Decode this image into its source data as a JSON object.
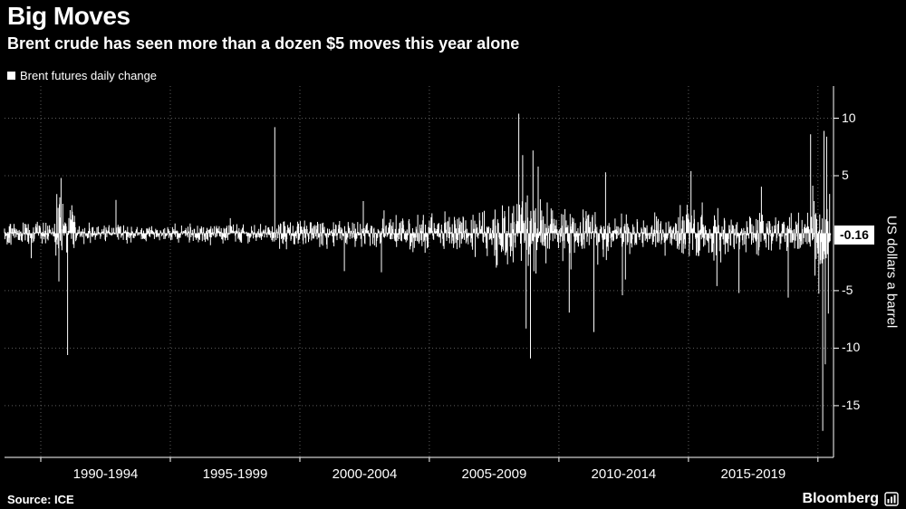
{
  "header": {
    "title": "Big Moves",
    "subtitle": "Brent crude has seen more than a dozen $5 moves this year alone"
  },
  "legend": {
    "label": "Brent futures daily change"
  },
  "footer": {
    "source": "Source: ICE",
    "brand": "Bloomberg"
  },
  "colors": {
    "background": "#000000",
    "foreground": "#ffffff",
    "bars": "#ffffff",
    "grid": "#aaaaaa",
    "axis": "#ffffff",
    "badge_bg": "#ffffff",
    "badge_text": "#000000"
  },
  "chart_data": {
    "type": "bar",
    "title": "Big Moves",
    "subtitle": "Brent crude has seen more than a dozen $5 moves this year alone",
    "series_name": "Brent futures daily change",
    "ylabel": "US dollars a barrel",
    "yticks": [
      10,
      5,
      -5,
      -10,
      -15
    ],
    "ylim": [
      -19.5,
      12.8
    ],
    "x_range": [
      1988.6,
      2020.6
    ],
    "data_end": 2020.5,
    "x_gridlines": [
      1990,
      1995,
      2000,
      2005,
      2010,
      2015,
      2020
    ],
    "x_labels": [
      {
        "label": "1990-1994",
        "center": 1992.5
      },
      {
        "label": "1995-1999",
        "center": 1997.5
      },
      {
        "label": "2000-2004",
        "center": 2002.5
      },
      {
        "label": "2005-2009",
        "center": 2007.5
      },
      {
        "label": "2010-2014",
        "center": 2012.5
      },
      {
        "label": "2015-2019",
        "center": 2017.5
      }
    ],
    "last_value": -0.16,
    "last_value_label": "-0.16",
    "points_per_year": 60,
    "seed": 42,
    "volatility_segments": [
      {
        "from": 1988.6,
        "to": 1990.55,
        "sigma": 0.55
      },
      {
        "from": 1990.55,
        "to": 1991.35,
        "sigma": 1.4
      },
      {
        "from": 1991.35,
        "to": 1999.0,
        "sigma": 0.42
      },
      {
        "from": 1999.0,
        "to": 2003.0,
        "sigma": 0.65
      },
      {
        "from": 2003.0,
        "to": 2007.5,
        "sigma": 0.85
      },
      {
        "from": 2007.5,
        "to": 2009.6,
        "sigma": 1.65
      },
      {
        "from": 2009.6,
        "to": 2011.9,
        "sigma": 1.1
      },
      {
        "from": 2011.9,
        "to": 2014.5,
        "sigma": 0.8
      },
      {
        "from": 2014.5,
        "to": 2016.6,
        "sigma": 1.1
      },
      {
        "from": 2016.6,
        "to": 2019.8,
        "sigma": 0.85
      },
      {
        "from": 2019.8,
        "to": 2020.55,
        "sigma": 2.4
      }
    ],
    "spikes": [
      {
        "x": 1990.62,
        "v": 3.4
      },
      {
        "x": 1990.7,
        "v": -4.2
      },
      {
        "x": 1990.78,
        "v": 4.8
      },
      {
        "x": 1991.04,
        "v": -10.6
      },
      {
        "x": 2001.72,
        "v": -3.3
      },
      {
        "x": 2003.15,
        "v": -3.4
      },
      {
        "x": 2008.45,
        "v": 10.4
      },
      {
        "x": 2008.6,
        "v": 6.8
      },
      {
        "x": 2008.74,
        "v": -8.3
      },
      {
        "x": 2008.9,
        "v": -10.9
      },
      {
        "x": 2009.0,
        "v": 7.2
      },
      {
        "x": 2009.2,
        "v": 5.8
      },
      {
        "x": 2010.4,
        "v": -6.9
      },
      {
        "x": 2011.35,
        "v": -8.6
      },
      {
        "x": 2011.8,
        "v": 5.3
      },
      {
        "x": 2012.45,
        "v": -5.4
      },
      {
        "x": 2015.1,
        "v": 5.4
      },
      {
        "x": 2016.1,
        "v": -4.6
      },
      {
        "x": 2016.95,
        "v": -5.2
      },
      {
        "x": 2018.85,
        "v": -5.6
      },
      {
        "x": 2019.72,
        "v": 8.6
      },
      {
        "x": 2020.18,
        "v": -17.2
      },
      {
        "x": 2020.23,
        "v": 8.9
      },
      {
        "x": 2020.28,
        "v": -11.4
      },
      {
        "x": 2020.33,
        "v": 8.4
      },
      {
        "x": 2020.4,
        "v": -7.0
      }
    ]
  }
}
